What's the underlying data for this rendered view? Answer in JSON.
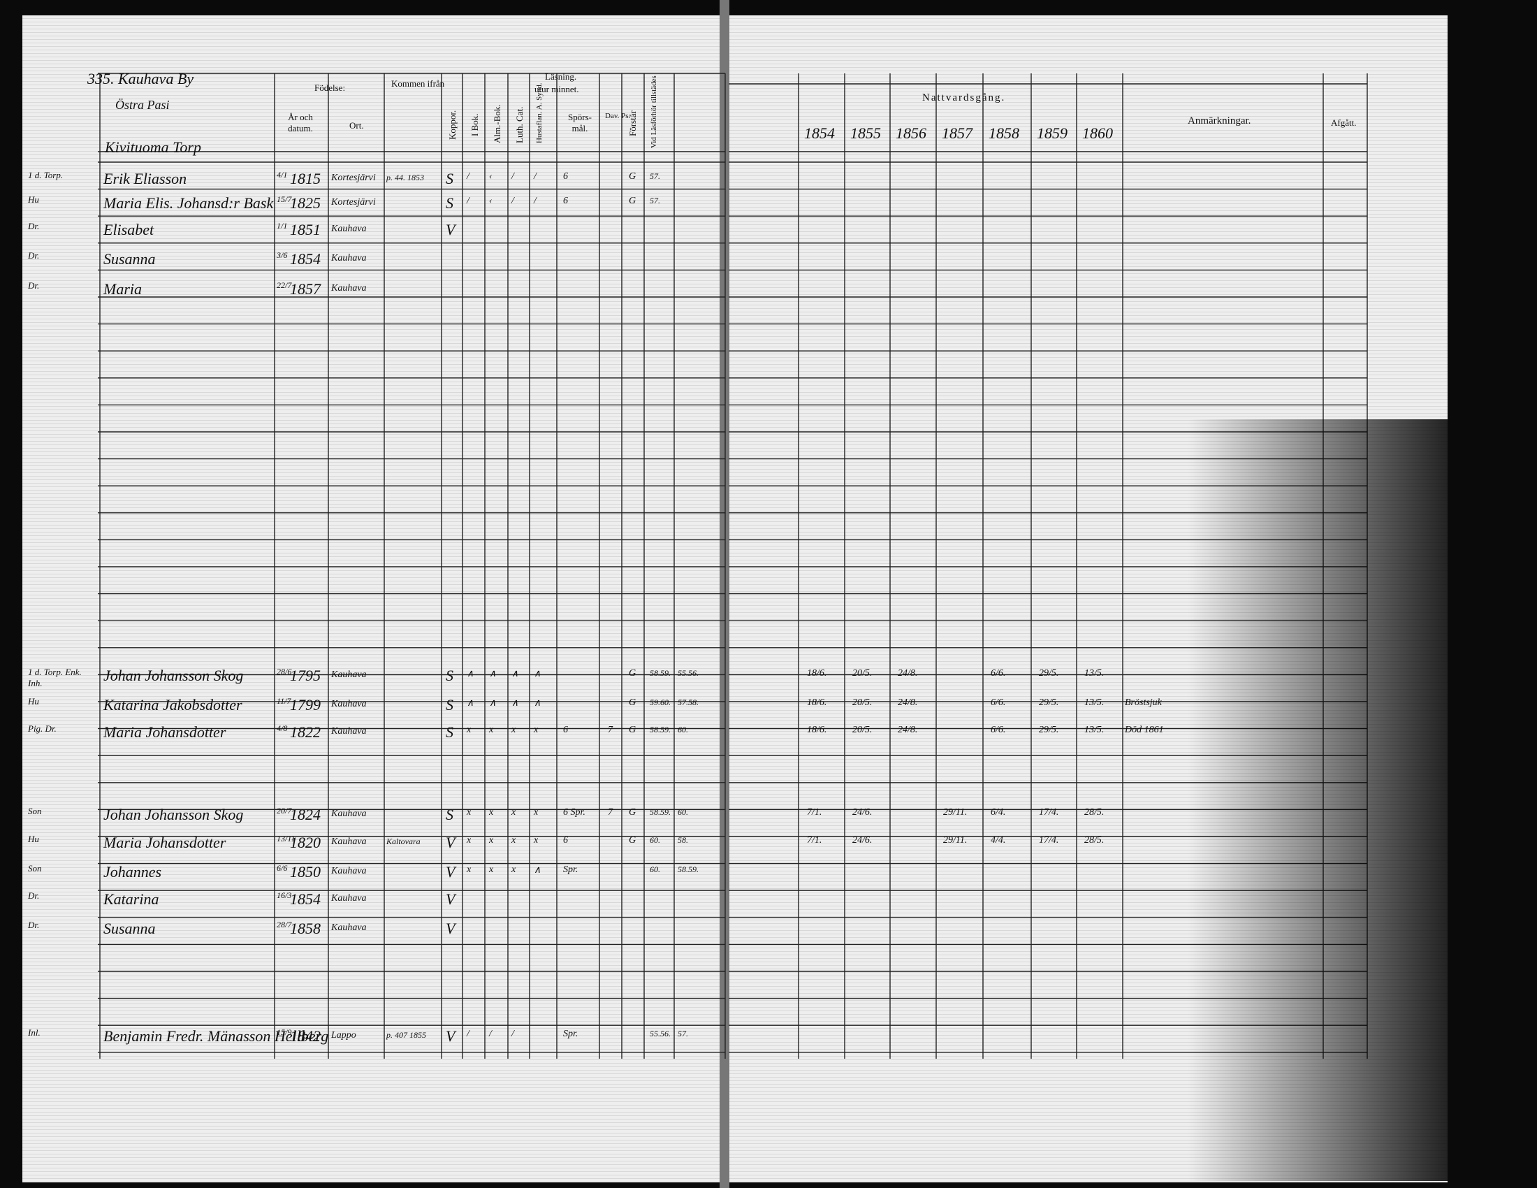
{
  "header": {
    "page_ref": "335. Kauhava By",
    "subtitle": "Östra Pasi",
    "place_heading": "Kivituoma Torp"
  },
  "columns": {
    "fodelse": "Födelse:",
    "ar": "År och datum.",
    "ort": "Ort.",
    "kommen": "Kommen ifrån",
    "koppor": "Koppor.",
    "lasning": "Läsning.",
    "utur_minnet": "utur minnet.",
    "i_bok": "I Bok.",
    "alm_bok": "Alm.-Bok.",
    "luth_cat": "Luth. Cat.",
    "hustaflan": "Hustaflan. A. Synd.",
    "sporsmal": "Spörs-mål.",
    "dav_ps": "Dav. Ps.",
    "forstar": "Förstår",
    "lasforhor": "Vid Läsförhör tillstädes",
    "nattvard": "Nattvardsgång.",
    "years": [
      "1854",
      "1855",
      "1856",
      "1857",
      "1858",
      "1859",
      "1860"
    ],
    "anmarkningar": "Anmärkningar.",
    "afgatt": "Afgått."
  },
  "rows": [
    {
      "role": "1 d. Torp.",
      "name": "Erik Eliasson",
      "date": "4/1",
      "year": "1815",
      "place": "Kortesjärvi",
      "from": "p. 44. 1853",
      "koppor": "S",
      "reading": [
        "/",
        "‹",
        "/",
        "/",
        "6",
        null,
        "G"
      ],
      "lasforhor": [
        "57.",
        null
      ],
      "communion": [
        null,
        null,
        null,
        null,
        null,
        null,
        null
      ],
      "note": null
    },
    {
      "role": "Hu",
      "name": "Maria Elis. Johansd:r Bask",
      "date": "15/7",
      "year": "1825",
      "place": "Kortesjärvi",
      "from": null,
      "koppor": "S",
      "reading": [
        "/",
        "‹",
        "/",
        "/",
        "6",
        null,
        "G"
      ],
      "lasforhor": [
        "57.",
        null
      ],
      "communion": [
        null,
        null,
        null,
        null,
        null,
        null,
        null
      ],
      "note": null
    },
    {
      "role": "Dr.",
      "name": "Elisabet",
      "date": "1/1",
      "year": "1851",
      "place": "Kauhava",
      "from": null,
      "koppor": "V",
      "reading": [
        null,
        null,
        null,
        null,
        null,
        null,
        null
      ],
      "lasforhor": [
        null,
        null
      ],
      "communion": [
        null,
        null,
        null,
        null,
        null,
        null,
        null
      ],
      "note": null
    },
    {
      "role": "Dr.",
      "name": "Susanna",
      "date": "3/6",
      "year": "1854",
      "place": "Kauhava",
      "from": null,
      "koppor": null,
      "reading": [
        null,
        null,
        null,
        null,
        null,
        null,
        null
      ],
      "lasforhor": [
        null,
        null
      ],
      "communion": [
        null,
        null,
        null,
        null,
        null,
        null,
        null
      ],
      "note": null
    },
    {
      "role": "Dr.",
      "name": "Maria",
      "date": "22/7",
      "year": "1857",
      "place": "Kauhava",
      "from": null,
      "koppor": null,
      "reading": [
        null,
        null,
        null,
        null,
        null,
        null,
        null
      ],
      "lasforhor": [
        null,
        null
      ],
      "communion": [
        null,
        null,
        null,
        null,
        null,
        null,
        null
      ],
      "note": null
    },
    {
      "role": "1 d. Torp. Enk. Inh.",
      "name": "Johan Johansson Skog",
      "date": "28/6",
      "year": "1795",
      "place": "Kauhava",
      "from": null,
      "koppor": "S",
      "reading": [
        "∧",
        "∧",
        "∧",
        "∧",
        null,
        null,
        "G"
      ],
      "lasforhor": [
        "58.59.",
        "55.56."
      ],
      "communion": [
        "18/6.",
        "20/5.",
        "24/8.",
        null,
        "6/6.",
        "29/5.",
        "13/5."
      ],
      "note": null
    },
    {
      "role": "Hu",
      "name": "Katarina Jakobsdotter",
      "date": "11/7",
      "year": "1799",
      "place": "Kauhava",
      "from": null,
      "koppor": "S",
      "reading": [
        "∧",
        "∧",
        "∧",
        "∧",
        null,
        null,
        "G"
      ],
      "lasforhor": [
        "59.60.",
        "57.58."
      ],
      "communion": [
        "18/6.",
        "20/5.",
        "24/8.",
        null,
        "6/6.",
        "29/5.",
        "13/5."
      ],
      "note": "Bröstsjuk"
    },
    {
      "role": "Pig. Dr.",
      "name": "Maria Johansdotter",
      "date": "4/8",
      "year": "1822",
      "place": "Kauhava",
      "from": null,
      "koppor": "S",
      "reading": [
        "x",
        "x",
        "x",
        "x",
        "6",
        "7",
        "G"
      ],
      "lasforhor": [
        "58.59.",
        "60."
      ],
      "communion": [
        "18/6.",
        "20/5.",
        "24/8.",
        null,
        "6/6.",
        "29/5.",
        "13/5."
      ],
      "note": "Död 1861"
    },
    {
      "role": "Son",
      "name": "Johan Johansson Skog",
      "date": "20/7",
      "year": "1824",
      "place": "Kauhava",
      "from": null,
      "koppor": "S",
      "reading": [
        "x",
        "x",
        "x",
        "x",
        "6 Spr.",
        "7",
        "G"
      ],
      "lasforhor": [
        "58.59.",
        "60."
      ],
      "communion": [
        "7/1.",
        "24/6.",
        null,
        "29/11.",
        "6/4.",
        "17/4.",
        "28/5."
      ],
      "note": null
    },
    {
      "role": "Hu",
      "name": "Maria Johansdotter",
      "date": "13/11",
      "year": "1820",
      "place": "Kauhava",
      "from": "Kaltovara",
      "koppor": "V",
      "reading": [
        "x",
        "x",
        "x",
        "x",
        "6",
        null,
        "G"
      ],
      "lasforhor": [
        "60.",
        "58."
      ],
      "communion": [
        "7/1.",
        "24/6.",
        null,
        "29/11.",
        "4/4.",
        "17/4.",
        "28/5."
      ],
      "note": null
    },
    {
      "role": "Son",
      "name": "Johannes",
      "date": "6/6",
      "year": "1850",
      "place": "Kauhava",
      "from": null,
      "koppor": "V",
      "reading": [
        "x",
        "x",
        "x",
        "∧",
        "Spr.",
        null,
        null
      ],
      "lasforhor": [
        "60.",
        "58.59."
      ],
      "communion": [
        null,
        null,
        null,
        null,
        null,
        null,
        null
      ],
      "note": null
    },
    {
      "role": "Dr.",
      "name": "Katarina",
      "date": "16/3",
      "year": "1854",
      "place": "Kauhava",
      "from": null,
      "koppor": "V",
      "reading": [
        null,
        null,
        null,
        null,
        null,
        null,
        null
      ],
      "lasforhor": [
        null,
        null
      ],
      "communion": [
        null,
        null,
        null,
        null,
        null,
        null,
        null
      ],
      "note": null
    },
    {
      "role": "Dr.",
      "name": "Susanna",
      "date": "28/7",
      "year": "1858",
      "place": "Kauhava",
      "from": null,
      "koppor": "V",
      "reading": [
        null,
        null,
        null,
        null,
        null,
        null,
        null
      ],
      "lasforhor": [
        null,
        null
      ],
      "communion": [
        null,
        null,
        null,
        null,
        null,
        null,
        null
      ],
      "note": null
    },
    {
      "role": "Inl.",
      "name": "Benjamin Fredr. Mänasson Hellberg",
      "date": "15/9",
      "year": "1842",
      "place": "Lappo",
      "from": "p. 407 1855",
      "koppor": "V",
      "reading": [
        "/",
        "/",
        "/",
        null,
        "Spr.",
        null,
        null
      ],
      "lasforhor": [
        "55.56.",
        "57."
      ],
      "communion": [
        null,
        null,
        null,
        null,
        null,
        null,
        null
      ],
      "note": null
    }
  ]
}
